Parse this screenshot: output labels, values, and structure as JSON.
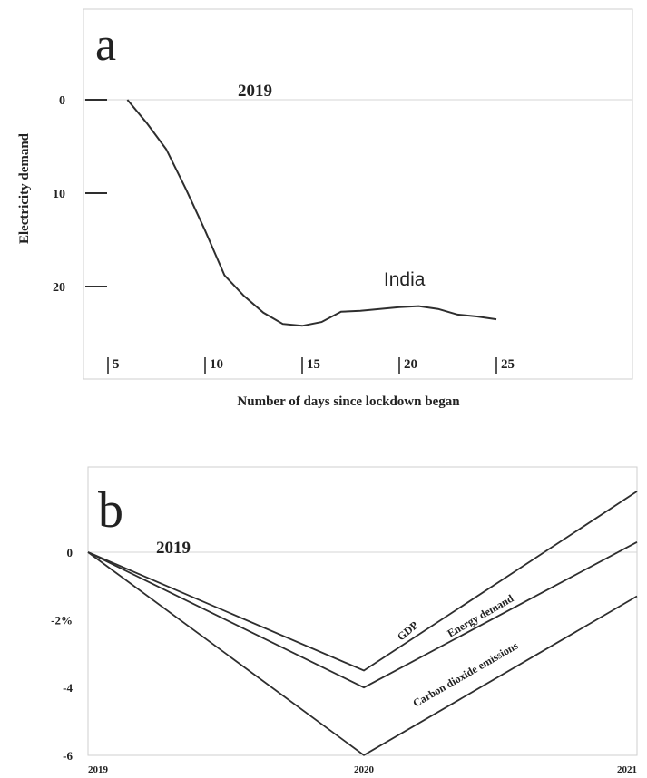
{
  "chart_data": [
    {
      "type": "line",
      "panel_label": "a",
      "reference_label": "2019",
      "xlabel": "Number of days since lockdown began",
      "ylabel": "Electricity demand",
      "xlim": [
        0,
        26
      ],
      "ylim": [
        -10,
        30
      ],
      "y_inverted": true,
      "x_ticks": [
        "5",
        "10",
        "15",
        "20",
        "25"
      ],
      "y_ticks": [
        "0",
        "10",
        "20"
      ],
      "series": [
        {
          "name": "India",
          "x": [
            6,
            7,
            8,
            9,
            10,
            11,
            12,
            13,
            14,
            15,
            16,
            17,
            18,
            19,
            20,
            21,
            22,
            23,
            24,
            25
          ],
          "y": [
            0,
            2.5,
            5.3,
            9.5,
            14,
            18.8,
            21,
            22.8,
            24,
            24.2,
            23.8,
            22.7,
            22.6,
            22.4,
            22.2,
            22.1,
            22.4,
            23,
            23.2,
            23.5
          ]
        }
      ],
      "colors": {
        "line": "#2e2e2e",
        "axis": "#cfcfcf",
        "text": "#222222"
      }
    },
    {
      "type": "line",
      "panel_label": "b",
      "reference_label": "2019",
      "xlabel": "",
      "ylabel": "",
      "categories": [
        "2019",
        "2020",
        "2021"
      ],
      "y_ticks": [
        "0",
        "-2%",
        "-4",
        "-6"
      ],
      "ylim": [
        -6,
        2
      ],
      "series": [
        {
          "name": "GDP",
          "values": [
            0,
            -3.5,
            1.8
          ]
        },
        {
          "name": "Energy demand",
          "values": [
            0,
            -4.0,
            0.3
          ]
        },
        {
          "name": "Carbon dioxide emissions",
          "values": [
            0,
            -6.0,
            -1.3
          ]
        }
      ],
      "colors": {
        "line": "#2e2e2e",
        "axis": "#cfcfcf",
        "text": "#222222"
      }
    }
  ]
}
